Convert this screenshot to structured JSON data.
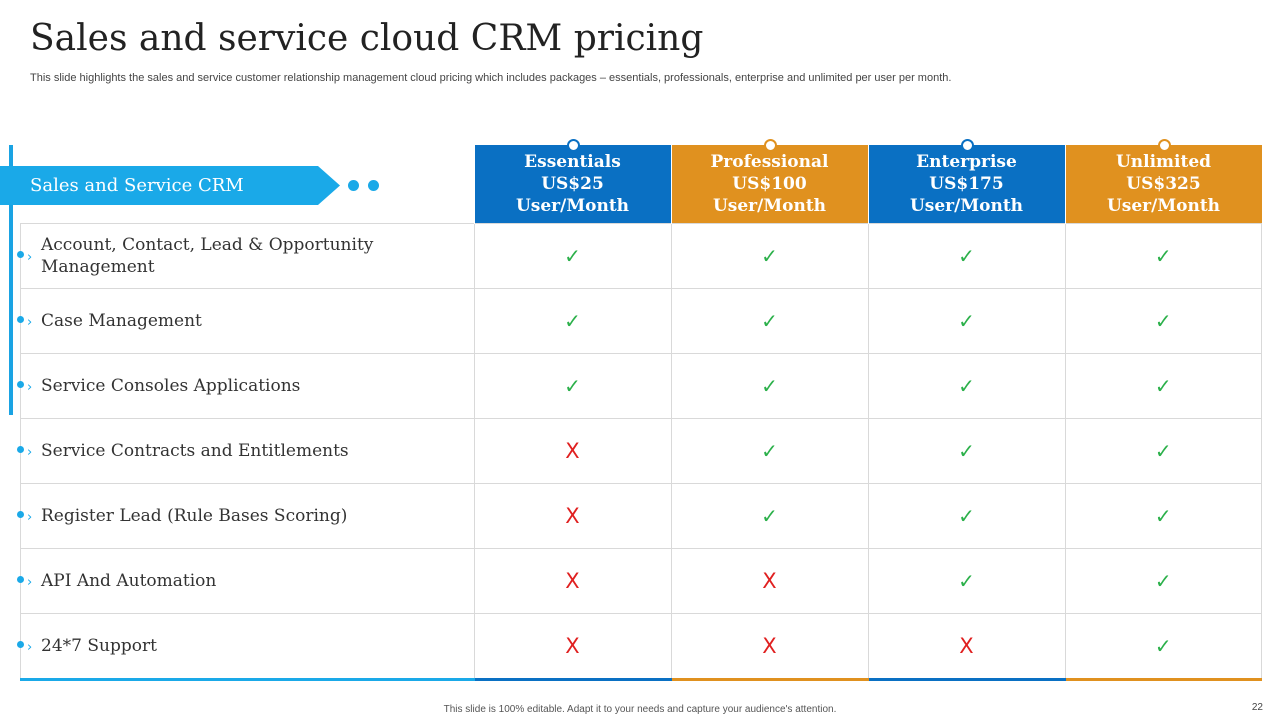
{
  "title": "Sales and service cloud CRM pricing",
  "subtitle": "This slide highlights the sales and service customer relationship management cloud pricing which includes packages – essentials, professionals, enterprise and unlimited per user per month.",
  "banner_label": "Sales and Service CRM",
  "colors": {
    "blue": "#0a70c3",
    "orange": "#e0911f",
    "accent": "#1aa9e8",
    "check": "#2bb04a",
    "cross": "#e02020"
  },
  "plans": [
    {
      "name": "Essentials",
      "price": "US$25",
      "unit": "User/Month",
      "color": "#0a70c3"
    },
    {
      "name": "Professional",
      "price": "US$100",
      "unit": "User/Month",
      "color": "#e0911f"
    },
    {
      "name": "Enterprise",
      "price": "US$175",
      "unit": "User/Month",
      "color": "#0a70c3"
    },
    {
      "name": "Unlimited",
      "price": "US$325",
      "unit": "User/Month",
      "color": "#e0911f"
    }
  ],
  "mark_symbols": {
    "yes": "✓",
    "no": "X"
  },
  "features": [
    {
      "label": "Account, Contact, Lead & Opportunity Management",
      "values": [
        "yes",
        "yes",
        "yes",
        "yes"
      ]
    },
    {
      "label": "Case Management",
      "values": [
        "yes",
        "yes",
        "yes",
        "yes"
      ]
    },
    {
      "label": "Service Consoles Applications",
      "values": [
        "yes",
        "yes",
        "yes",
        "yes"
      ]
    },
    {
      "label": "Service Contracts and Entitlements",
      "values": [
        "no",
        "yes",
        "yes",
        "yes"
      ]
    },
    {
      "label": "Register Lead (Rule Bases Scoring)",
      "values": [
        "no",
        "yes",
        "yes",
        "yes"
      ]
    },
    {
      "label": "API And Automation",
      "values": [
        "no",
        "no",
        "yes",
        "yes"
      ]
    },
    {
      "label": "24*7 Support",
      "values": [
        "no",
        "no",
        "no",
        "yes"
      ]
    }
  ],
  "footer": "This slide is 100% editable. Adapt it to your needs and capture your audience's attention.",
  "page_number": "22"
}
